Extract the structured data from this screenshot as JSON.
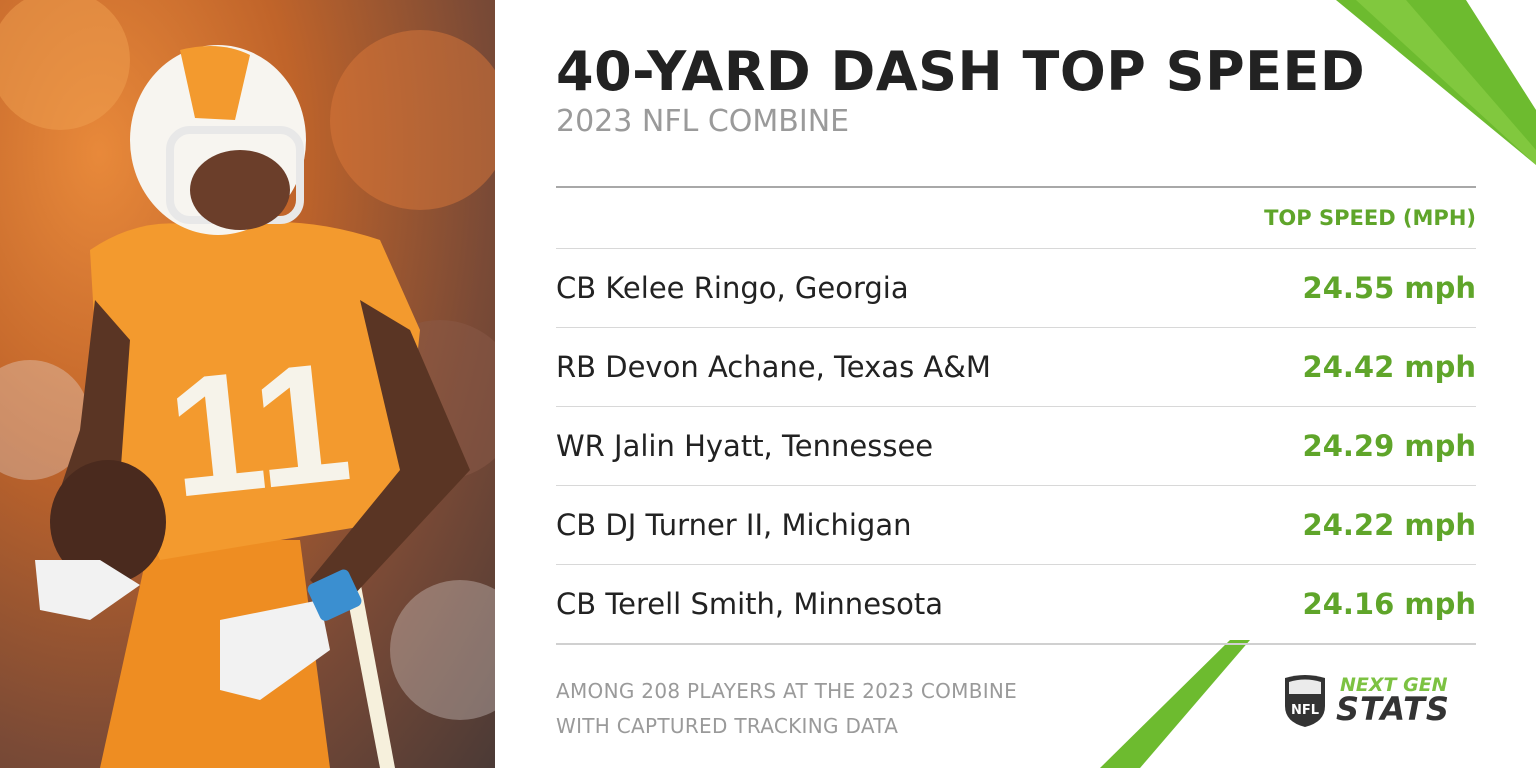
{
  "header": {
    "title": "40-YARD DASH TOP SPEED",
    "subtitle": "2023 NFL COMBINE"
  },
  "table": {
    "column_header": "TOP SPEED (MPH)",
    "rows": [
      {
        "player": "CB Kelee Ringo, Georgia",
        "speed": "24.55 mph"
      },
      {
        "player": "RB Devon Achane, Texas A&M",
        "speed": "24.42 mph"
      },
      {
        "player": "WR Jalin Hyatt, Tennessee",
        "speed": "24.29 mph"
      },
      {
        "player": "CB DJ Turner II, Michigan",
        "speed": "24.22 mph"
      },
      {
        "player": "CB Terell Smith, Minnesota",
        "speed": "24.16 mph"
      }
    ]
  },
  "footnote": {
    "line1": "AMONG 208 PLAYERS AT THE 2023 COMBINE",
    "line2": "WITH CAPTURED TRACKING DATA"
  },
  "logo": {
    "shield_text": "NFL",
    "line1": "NEXT GEN",
    "line2": "STATS"
  },
  "photo": {
    "jersey_number": "11"
  },
  "colors": {
    "accent_green": "#5fa52a",
    "title": "#222222",
    "muted": "#9a9a9a",
    "jersey_orange": "#f39a2e"
  }
}
